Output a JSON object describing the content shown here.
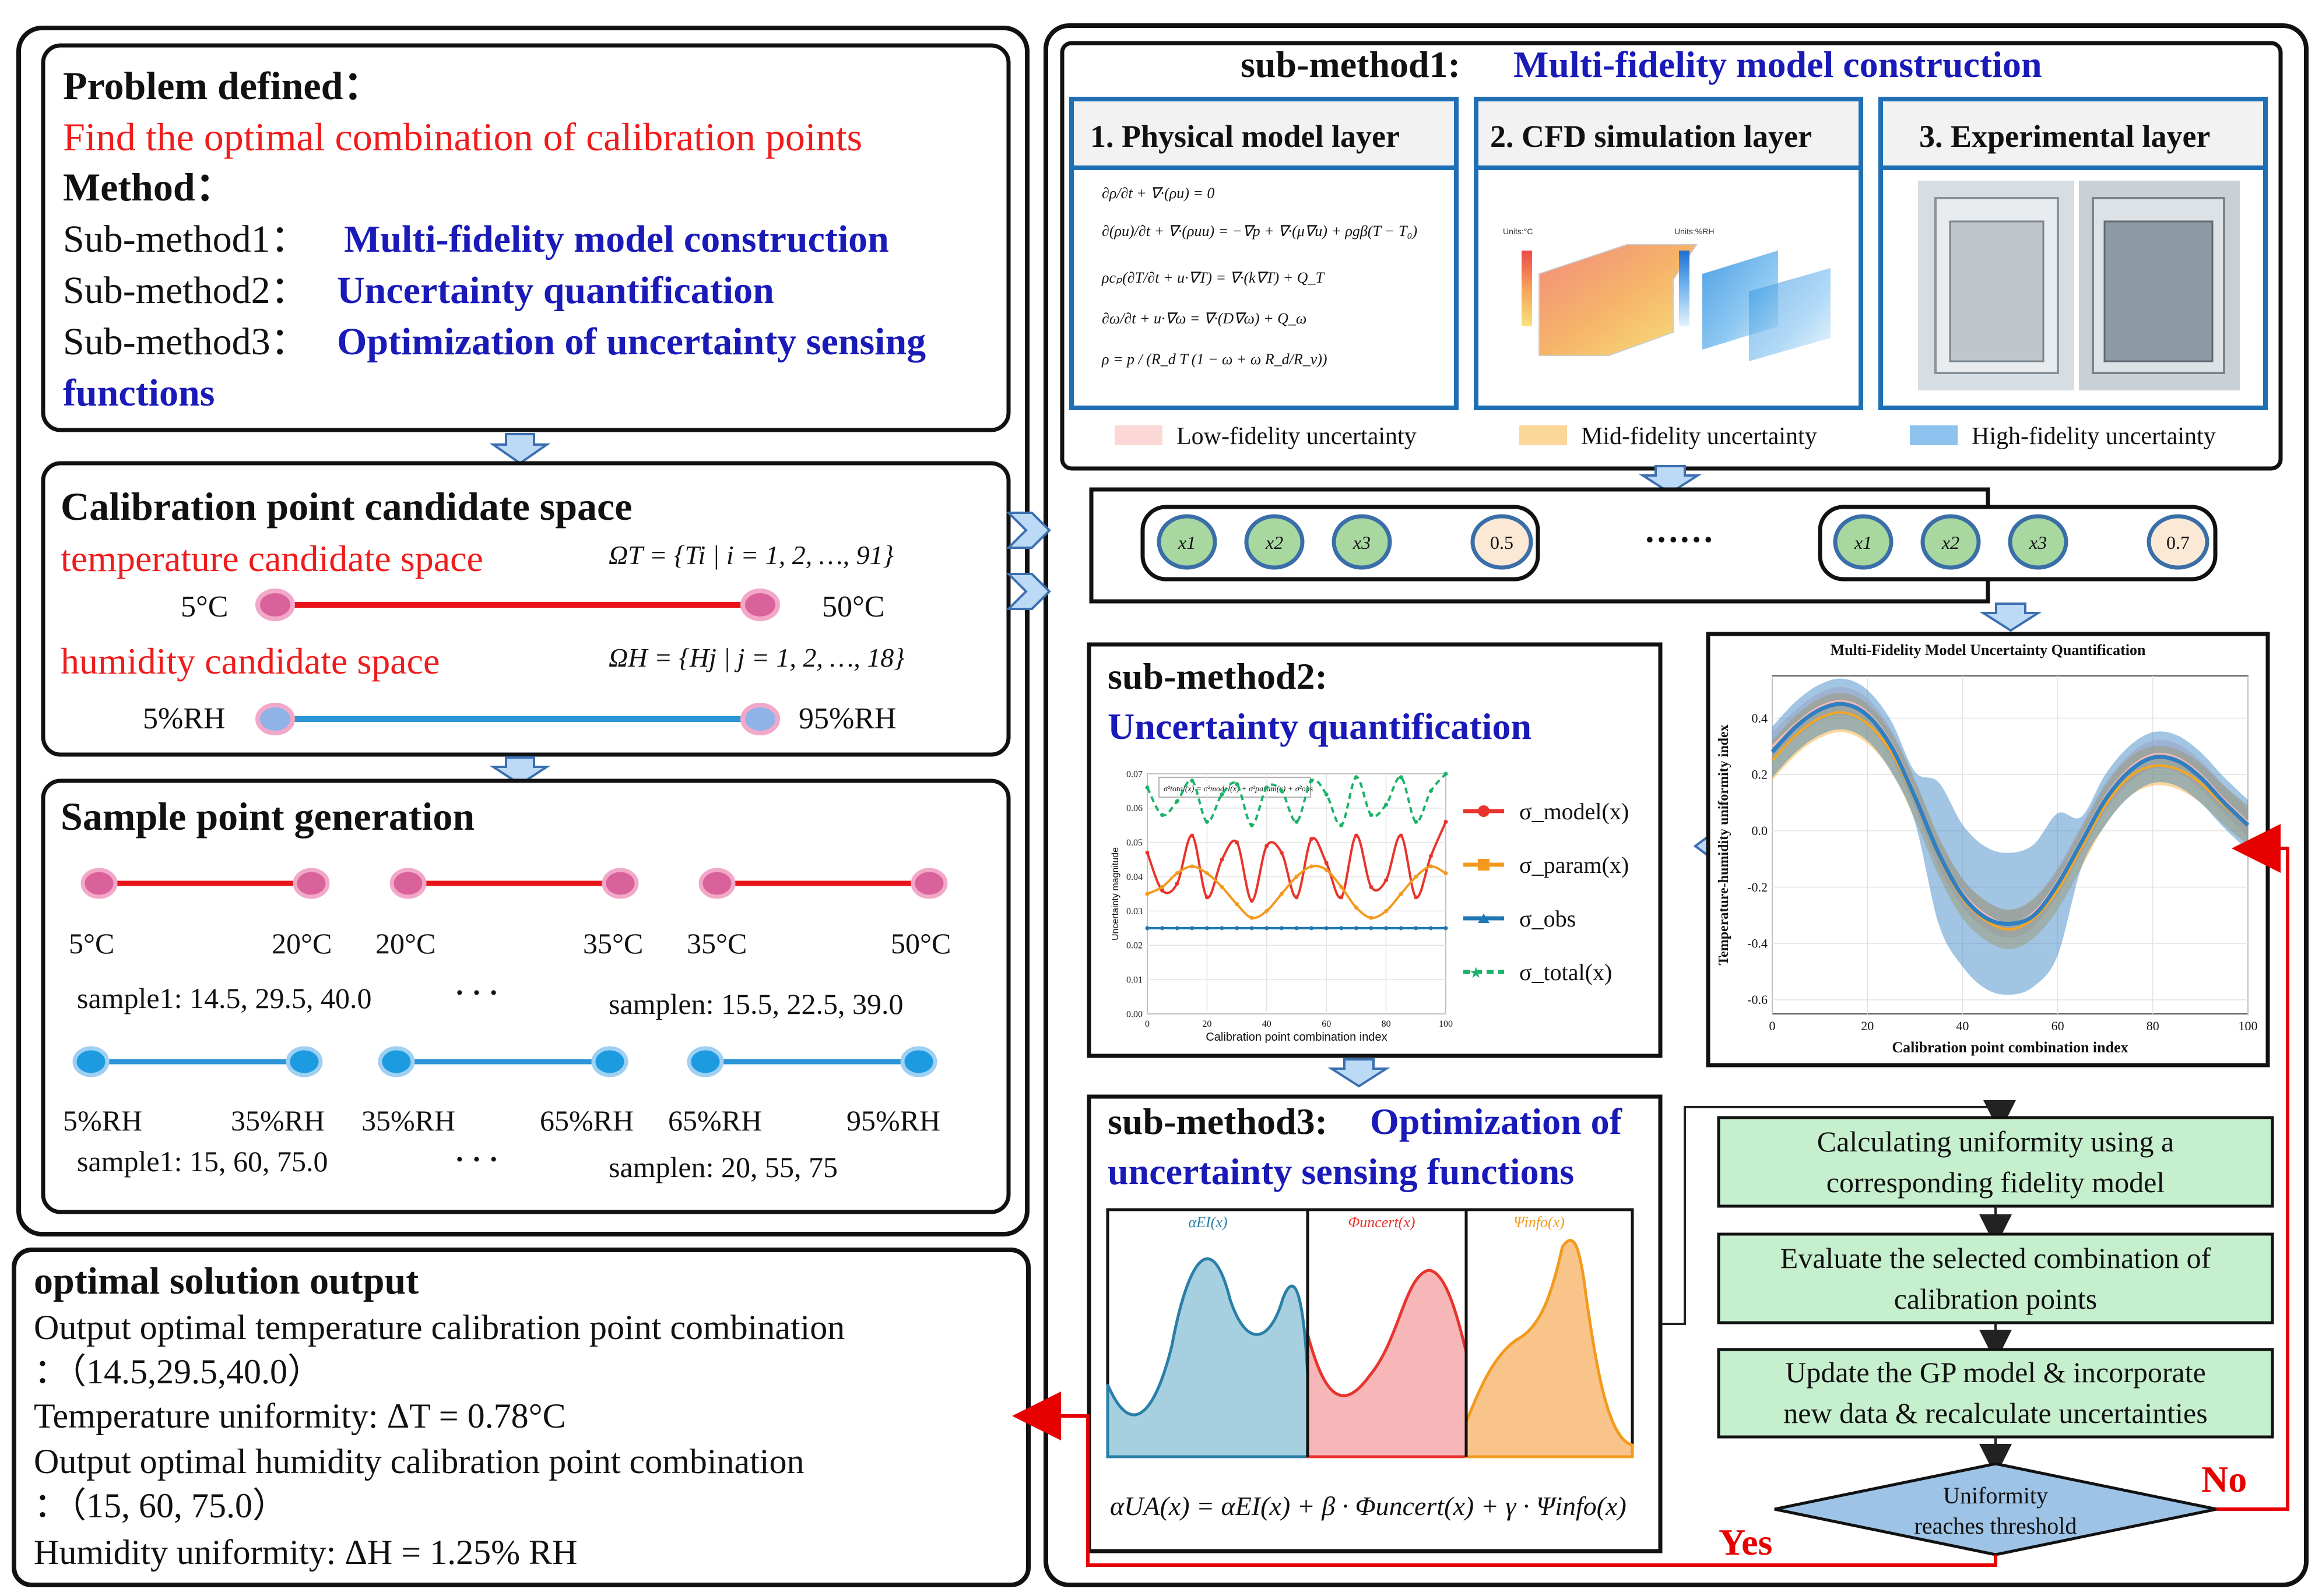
{
  "problem": {
    "heading": "Problem defined：",
    "statement": "Find the optimal combination of calibration points",
    "method_heading": "Method：",
    "submethods": [
      {
        "label": "Sub-method1：",
        "name": "Multi-fidelity model construction"
      },
      {
        "label": "Sub-method2：",
        "name": "Uncertainty quantification"
      },
      {
        "label": "Sub-method3：",
        "name": "Optimization of uncertainty sensing"
      }
    ],
    "submethod3_cont": "functions"
  },
  "candidate": {
    "title": "Calibration point candidate space",
    "temp_label": "temperature candidate space",
    "temp_formula": "ΩT = {Ti | i = 1, 2, …, 91}",
    "temp_min": "5°C",
    "temp_max": "50°C",
    "hum_label": "humidity candidate space",
    "hum_formula": "ΩH = {Hj | j = 1, 2, …, 18}",
    "hum_min": "5%RH",
    "hum_max": "95%RH"
  },
  "sample": {
    "title": "Sample point generation",
    "temp_ranges": [
      "5°C",
      "20°C",
      "20°C",
      "35°C",
      "35°C",
      "50°C"
    ],
    "temp_sample1": "sample1: 14.5, 29.5, 40.0",
    "temp_samplen": "samplen: 15.5, 22.5, 39.0",
    "hum_ranges": [
      "5%RH",
      "35%RH",
      "35%RH",
      "65%RH",
      "65%RH",
      "95%RH"
    ],
    "hum_sample1": "sample1: 15, 60, 75.0",
    "hum_samplen": "samplen: 20, 55, 75",
    "dots": "· · ·"
  },
  "output": {
    "title": "optimal solution output",
    "line1": "Output optimal temperature calibration point combination",
    "line2": "：（14.5,29.5,40.0）",
    "line3": "Temperature uniformity: ΔT = 0.78°C",
    "line4": "Output optimal humidity calibration point combination",
    "line5": "：（15, 60, 75.0）",
    "line6": "Humidity uniformity: ΔH = 1.25% RH"
  },
  "sm1": {
    "title_prefix": "sub-method1:",
    "title_name": "Multi-fidelity model construction",
    "layers": [
      "1. Physical model layer",
      "2. CFD simulation layer",
      "3. Experimental layer"
    ],
    "legend": [
      "Low-fidelity uncertainty",
      "Mid-fidelity uncertainty",
      "High-fidelity uncertainty"
    ],
    "cfd_units_left": "Units:°C",
    "cfd_units_right": "Units:%RH"
  },
  "combos": {
    "left": [
      "x1",
      "x2",
      "x3"
    ],
    "left_value": "0.5",
    "ellipsis": "……",
    "right": [
      "x1",
      "x2",
      "x3"
    ],
    "right_value": "0.7"
  },
  "sm2": {
    "title": "sub-method2:",
    "name": "Uncertainty quantification",
    "chart_title": "Multi-Fidelity Model Uncertainty Quantification",
    "legend": [
      "σ_model(x)",
      "σ_param(x)",
      "σ_obs",
      "σ_total(x)"
    ]
  },
  "sm3": {
    "title": "sub-method3:",
    "name_part1": "Optimization of",
    "name_part2": "uncertainty sensing functions",
    "panel_labels": [
      "αEI(x)",
      "Φuncert(x)",
      "Ψinfo(x)"
    ],
    "formula": "αUA(x) = αEI(x) + β · Φuncert(x) + γ · Ψinfo(x)"
  },
  "flow": {
    "step1": [
      "Calculating uniformity using a",
      "corresponding fidelity model"
    ],
    "step2": [
      "Evaluate the selected combination of",
      "calibration points"
    ],
    "step3": [
      "Update the GP model & incorporate",
      "new data & recalculate uncertainties"
    ],
    "decision": [
      "Uniformity",
      "reaches threshold"
    ],
    "yes": "Yes",
    "no": "No"
  },
  "chart_data": [
    {
      "type": "line",
      "title": "",
      "xlabel": "Calibration point combination index",
      "ylabel": "Uncertainty magnitude",
      "annotation": "σ²total(x) = σ²model(x) + σ²param(x) + σ²obs",
      "xlim": [
        0,
        100
      ],
      "ylim": [
        0.0,
        0.07
      ],
      "xticks": [
        0,
        20,
        40,
        60,
        80,
        100
      ],
      "yticks": [
        0.0,
        0.01,
        0.02,
        0.03,
        0.04,
        0.05,
        0.06,
        0.07
      ],
      "x": [
        0,
        5,
        10,
        15,
        20,
        25,
        30,
        35,
        40,
        45,
        50,
        55,
        60,
        65,
        70,
        75,
        80,
        85,
        90,
        95,
        100
      ],
      "series": [
        {
          "name": "σ_model(x)",
          "color": "#e8342c",
          "values": [
            0.047,
            0.036,
            0.038,
            0.052,
            0.034,
            0.045,
            0.05,
            0.033,
            0.049,
            0.047,
            0.034,
            0.051,
            0.044,
            0.034,
            0.052,
            0.037,
            0.039,
            0.052,
            0.034,
            0.046,
            0.056
          ]
        },
        {
          "name": "σ_param(x)",
          "color": "#f39a1e",
          "values": [
            0.035,
            0.037,
            0.041,
            0.043,
            0.041,
            0.037,
            0.032,
            0.028,
            0.03,
            0.035,
            0.04,
            0.043,
            0.042,
            0.037,
            0.031,
            0.028,
            0.03,
            0.035,
            0.04,
            0.043,
            0.041
          ]
        },
        {
          "name": "σ_obs",
          "color": "#1f77b4",
          "values": [
            0.025,
            0.025,
            0.025,
            0.025,
            0.025,
            0.025,
            0.025,
            0.025,
            0.025,
            0.025,
            0.025,
            0.025,
            0.025,
            0.025,
            0.025,
            0.025,
            0.025,
            0.025,
            0.025,
            0.025,
            0.025
          ]
        },
        {
          "name": "σ_total(x)",
          "color": "#1bb36a",
          "values": [
            0.066,
            0.058,
            0.062,
            0.068,
            0.056,
            0.064,
            0.067,
            0.055,
            0.066,
            0.065,
            0.056,
            0.068,
            0.064,
            0.055,
            0.069,
            0.058,
            0.061,
            0.069,
            0.056,
            0.065,
            0.07
          ]
        }
      ]
    },
    {
      "type": "line",
      "title": "Multi-Fidelity Model Uncertainty Quantification",
      "xlabel": "Calibration point combination index",
      "ylabel": "Temperature-humidity uniformity index",
      "xlim": [
        0,
        100
      ],
      "ylim": [
        -0.65,
        0.55
      ],
      "xticks": [
        0,
        20,
        40,
        60,
        80,
        100
      ],
      "yticks": [
        -0.6,
        -0.4,
        -0.2,
        0.0,
        0.2,
        0.4
      ],
      "x": [
        0,
        5,
        10,
        15,
        20,
        25,
        30,
        35,
        40,
        45,
        50,
        55,
        60,
        65,
        70,
        75,
        80,
        85,
        90,
        95,
        100
      ],
      "series": [
        {
          "name": "Low-fidelity",
          "color": "#f3b9b5",
          "values": [
            0.3,
            0.38,
            0.44,
            0.46,
            0.42,
            0.31,
            0.13,
            -0.08,
            -0.22,
            -0.3,
            -0.33,
            -0.29,
            -0.18,
            -0.03,
            0.12,
            0.22,
            0.27,
            0.26,
            0.2,
            0.11,
            0.03
          ]
        },
        {
          "name": "Mid-fidelity",
          "color": "#f5a623",
          "values": [
            0.25,
            0.34,
            0.4,
            0.42,
            0.38,
            0.28,
            0.11,
            -0.09,
            -0.24,
            -0.32,
            -0.35,
            -0.31,
            -0.21,
            -0.06,
            0.09,
            0.19,
            0.23,
            0.22,
            0.17,
            0.09,
            0.02
          ]
        },
        {
          "name": "High-fidelity",
          "color": "#2f7fc1",
          "values": [
            0.28,
            0.37,
            0.43,
            0.45,
            0.41,
            0.3,
            0.12,
            -0.08,
            -0.23,
            -0.31,
            -0.33,
            -0.3,
            -0.19,
            -0.04,
            0.11,
            0.21,
            0.26,
            0.25,
            0.19,
            0.1,
            0.02
          ]
        }
      ]
    }
  ]
}
